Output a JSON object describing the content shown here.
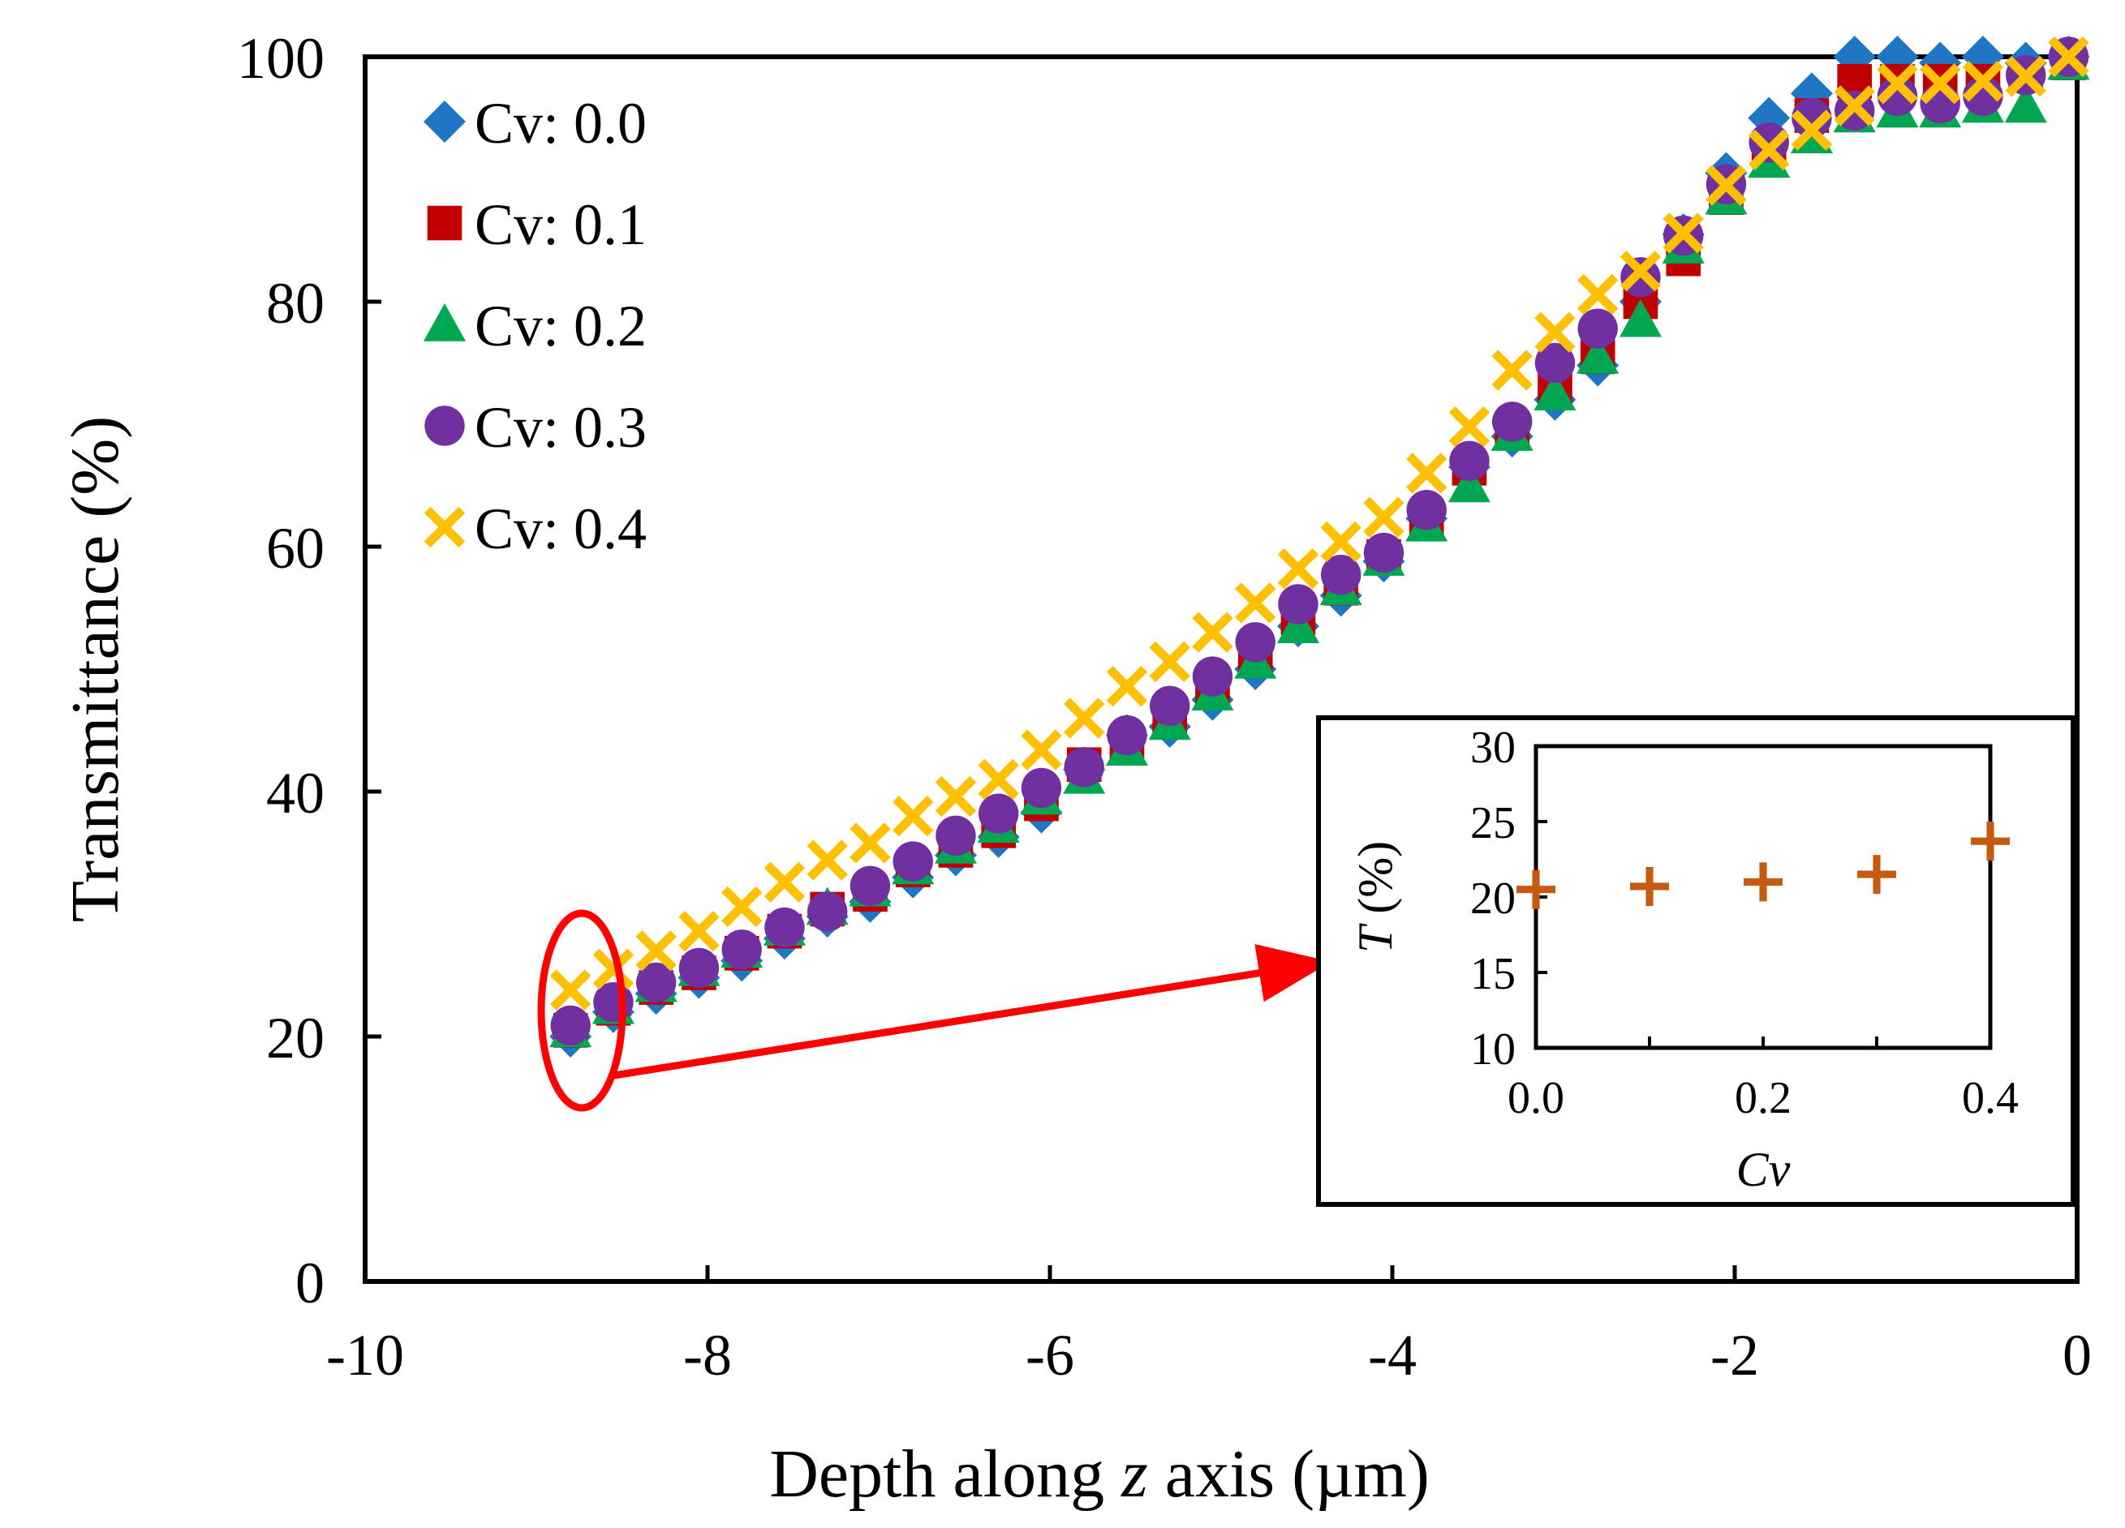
{
  "colors": {
    "cv00": "#1f77c4",
    "cv01": "#c00000",
    "cv02": "#00a651",
    "cv03": "#7030a0",
    "cv04": "#ffc000",
    "inset": "#c55a11",
    "highlight": "#ff0000"
  },
  "chart_data": [
    {
      "type": "scatter",
      "title": "",
      "xlabel_parts": [
        "Depth along ",
        "z",
        " axis (µm)"
      ],
      "ylabel": "Transmittance (%)",
      "xlim": [
        -10,
        0
      ],
      "ylim": [
        0,
        100
      ],
      "xticks": [
        -10,
        -8,
        -6,
        -4,
        -2,
        0
      ],
      "xtick_labels": [
        "-10",
        "-8",
        "-6",
        "-4",
        "-2",
        "0"
      ],
      "yticks": [
        0,
        20,
        40,
        60,
        80,
        100
      ],
      "ytick_labels": [
        "0",
        "20",
        "40",
        "60",
        "80",
        "100"
      ],
      "grid": false,
      "legend_position": "top-left",
      "x": [
        -8.8,
        -8.55,
        -8.3,
        -8.05,
        -7.8,
        -7.55,
        -7.3,
        -7.05,
        -6.8,
        -6.55,
        -6.3,
        -6.05,
        -5.8,
        -5.55,
        -5.3,
        -5.05,
        -4.8,
        -4.55,
        -4.3,
        -4.05,
        -3.8,
        -3.55,
        -3.3,
        -3.05,
        -2.8,
        -2.55,
        -2.3,
        -2.05,
        -1.8,
        -1.55,
        -1.3,
        -1.05,
        -0.8,
        -0.55,
        -0.3,
        -0.05
      ],
      "series": [
        {
          "name": "Cv: 0.0",
          "marker": "diamond",
          "color_key": "cv00",
          "values": [
            20.0,
            22.0,
            23.5,
            24.8,
            26.2,
            28.0,
            29.8,
            31.0,
            33.0,
            34.8,
            36.3,
            38.3,
            41.8,
            44.6,
            45.3,
            47.5,
            50.0,
            53.5,
            56.0,
            58.8,
            62.3,
            66.5,
            69.0,
            72.0,
            74.8,
            80.0,
            85.5,
            90.5,
            95.0,
            97.0,
            100.0,
            100.0,
            99.5,
            100.0,
            99.5,
            100.0
          ]
        },
        {
          "name": "Cv: 0.1",
          "marker": "square",
          "color_key": "cv01",
          "values": [
            20.5,
            22.3,
            24.0,
            25.2,
            26.8,
            28.6,
            30.4,
            31.6,
            33.6,
            35.2,
            36.8,
            39.0,
            42.2,
            44.0,
            46.2,
            48.5,
            51.0,
            54.2,
            56.6,
            59.2,
            62.4,
            66.4,
            69.6,
            72.8,
            75.5,
            80.0,
            83.5,
            88.5,
            92.5,
            95.2,
            98.0,
            98.0,
            98.0,
            98.0,
            98.5,
            99.5
          ]
        },
        {
          "name": "Cv: 0.2",
          "marker": "triangle",
          "color_key": "cv02",
          "values": [
            20.5,
            22.4,
            24.2,
            25.5,
            27.0,
            28.8,
            30.5,
            32.0,
            33.8,
            35.5,
            37.2,
            39.5,
            41.2,
            43.5,
            45.6,
            48.0,
            50.6,
            53.5,
            56.6,
            59.0,
            61.8,
            65.0,
            69.2,
            72.5,
            75.5,
            78.5,
            84.5,
            88.5,
            91.5,
            93.5,
            95.2,
            95.6,
            95.6,
            96.0,
            96.0,
            99.5
          ]
        },
        {
          "name": "Cv: 0.3",
          "marker": "circle",
          "color_key": "cv03",
          "values": [
            20.9,
            22.8,
            24.4,
            25.6,
            27.1,
            28.9,
            30.2,
            32.3,
            34.3,
            36.4,
            38.2,
            40.3,
            42.0,
            44.6,
            47.0,
            49.4,
            52.2,
            55.3,
            57.7,
            59.5,
            63.0,
            67.0,
            70.2,
            75.0,
            77.8,
            82.0,
            85.4,
            89.6,
            93.0,
            95.0,
            95.6,
            96.8,
            96.2,
            96.8,
            98.5,
            100.0
          ]
        },
        {
          "name": "Cv: 0.4",
          "marker": "x",
          "color_key": "cv04",
          "values": [
            23.8,
            25.5,
            27.0,
            28.6,
            30.6,
            32.6,
            34.4,
            35.8,
            38.0,
            39.6,
            41.0,
            43.4,
            46.0,
            48.6,
            50.6,
            53.0,
            55.4,
            58.2,
            60.4,
            62.4,
            66.0,
            69.8,
            74.4,
            77.5,
            80.6,
            82.5,
            85.6,
            89.5,
            92.4,
            94.0,
            96.0,
            97.8,
            97.8,
            98.0,
            98.4,
            100.0
          ]
        }
      ]
    },
    {
      "type": "scatter",
      "title": "",
      "xlabel": "Cv",
      "ylabel_parts": [
        "T",
        " (%)"
      ],
      "xlim": [
        0,
        0.4
      ],
      "ylim": [
        10,
        30
      ],
      "xticks": [
        0,
        0.2,
        0.4
      ],
      "xtick_labels": [
        "0.0",
        "0.2",
        "0.4"
      ],
      "yticks": [
        10,
        15,
        20,
        25,
        30
      ],
      "ytick_labels": [
        "10",
        "15",
        "20",
        "25",
        "30"
      ],
      "grid": false,
      "marker": "plus",
      "color_key": "inset",
      "x": [
        0.0,
        0.1,
        0.2,
        0.3,
        0.4
      ],
      "values": [
        20.5,
        20.7,
        21.0,
        21.5,
        23.7
      ]
    }
  ]
}
